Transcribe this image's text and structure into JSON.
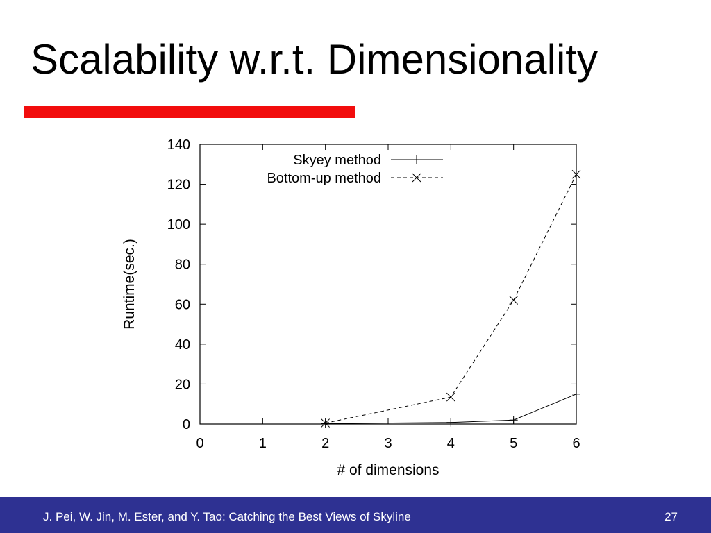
{
  "slide": {
    "title": "Scalability w.r.t. Dimensionality",
    "footer": "J. Pei, W. Jin, M. Ester, and Y. Tao: Catching the Best Views of Skyline",
    "page_number": "27"
  },
  "colors": {
    "accent_rule": "#f20d0d",
    "footer_bar": "#2e3192",
    "footer_text": "#ffffff"
  },
  "chart_data": {
    "type": "line",
    "title": "",
    "xlabel": "# of dimensions",
    "ylabel": "Runtime(sec.)",
    "xlim": [
      0,
      6
    ],
    "ylim": [
      0,
      140
    ],
    "xticks": [
      0,
      1,
      2,
      3,
      4,
      5,
      6
    ],
    "yticks": [
      0,
      20,
      40,
      60,
      80,
      100,
      120,
      140
    ],
    "grid": false,
    "legend_position": "top-right",
    "series": [
      {
        "name": "Skyey method",
        "marker": "plus",
        "line_style": "solid",
        "x": [
          2,
          4,
          5,
          6
        ],
        "y": [
          0.2,
          0.8,
          2,
          15
        ]
      },
      {
        "name": "Bottom-up method",
        "marker": "cross",
        "line_style": "dashed",
        "x": [
          2,
          4,
          5,
          6
        ],
        "y": [
          0.5,
          13.5,
          62,
          125
        ]
      }
    ]
  }
}
